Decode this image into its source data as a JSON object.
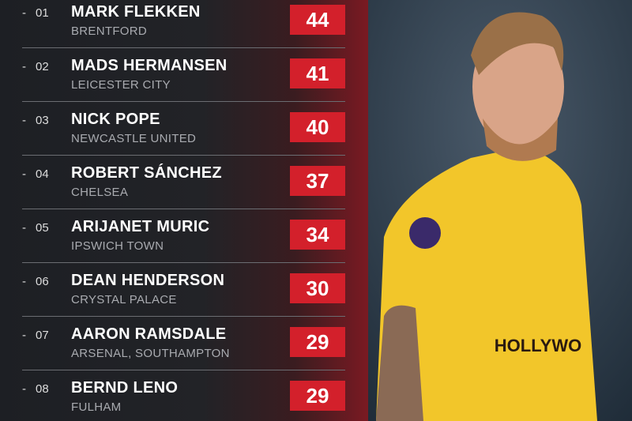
{
  "table": {
    "rows": [
      {
        "rank": "01",
        "name": "MARK FLEKKEN",
        "club": "BRENTFORD",
        "value": 44
      },
      {
        "rank": "02",
        "name": "MADS HERMANSEN",
        "club": "LEICESTER CITY",
        "value": 41
      },
      {
        "rank": "03",
        "name": "NICK POPE",
        "club": "NEWCASTLE UNITED",
        "value": 40
      },
      {
        "rank": "04",
        "name": "ROBERT SÁNCHEZ",
        "club": "CHELSEA",
        "value": 37
      },
      {
        "rank": "05",
        "name": "ARIJANET MURIC",
        "club": "IPSWICH TOWN",
        "value": 34
      },
      {
        "rank": "06",
        "name": "DEAN HENDERSON",
        "club": "CRYSTAL PALACE",
        "value": 30
      },
      {
        "rank": "07",
        "name": "AARON RAMSDALE",
        "club": "ARSENAL, SOUTHAMPTON",
        "value": 29
      },
      {
        "rank": "08",
        "name": "BERND LENO",
        "club": "FULHAM",
        "value": 29
      }
    ]
  }
}
